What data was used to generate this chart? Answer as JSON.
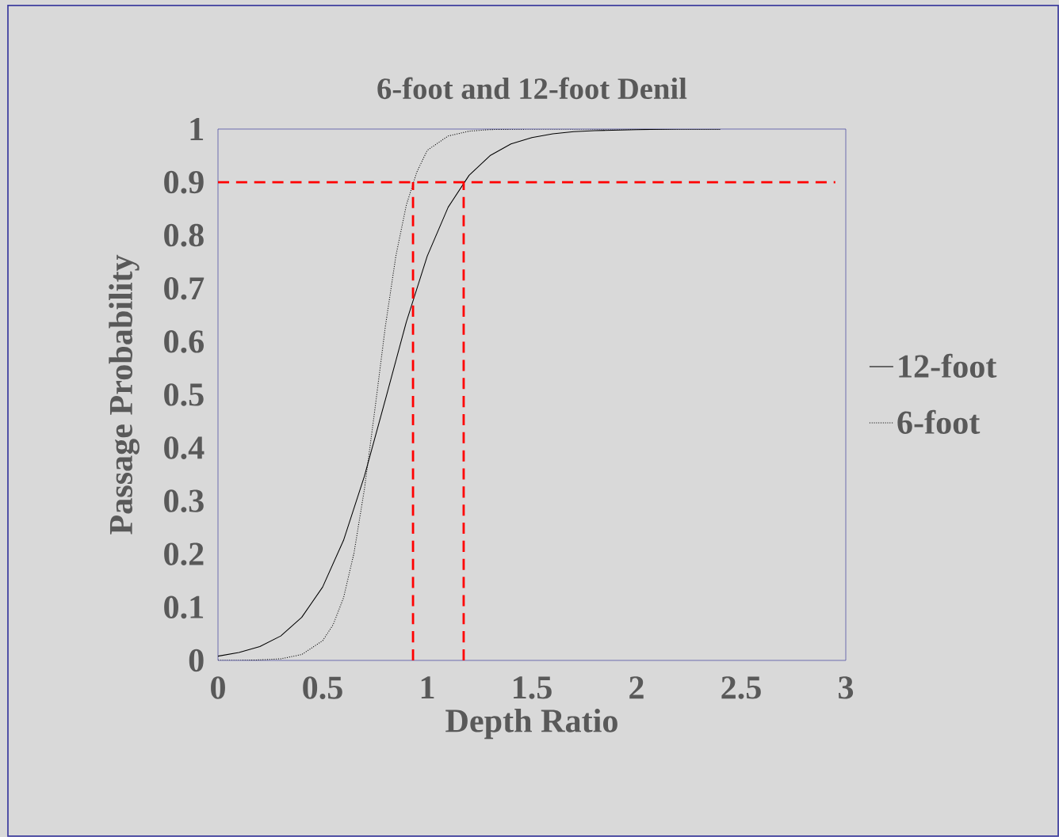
{
  "chart_data": {
    "type": "line",
    "title": "6-foot and 12-foot Denil",
    "xlabel": "Depth Ratio",
    "ylabel": "Passage Probability",
    "xlim": [
      0,
      3
    ],
    "xticks": [
      0,
      0.5,
      1,
      1.5,
      2,
      2.5,
      3
    ],
    "ylim": [
      0,
      1
    ],
    "yticks": [
      0,
      0.1,
      0.2,
      0.3,
      0.4,
      0.5,
      0.6,
      0.7,
      0.8,
      0.9,
      1
    ],
    "grid": false,
    "legend": "right",
    "marker": "none",
    "series": [
      {
        "name": "12-foot",
        "color": "#000000",
        "line_style": "solid",
        "x": [
          0,
          0.1,
          0.2,
          0.3,
          0.4,
          0.5,
          0.6,
          0.7,
          0.8,
          0.9,
          1.0,
          1.1,
          1.2,
          1.3,
          1.4,
          1.5,
          1.6,
          1.7,
          1.8,
          2.0,
          2.2,
          2.4
        ],
        "values": [
          0.008,
          0.015,
          0.026,
          0.046,
          0.081,
          0.138,
          0.226,
          0.347,
          0.491,
          0.637,
          0.761,
          0.853,
          0.913,
          0.95,
          0.972,
          0.984,
          0.991,
          0.995,
          0.997,
          0.999,
          1.0,
          1.0
        ]
      },
      {
        "name": "6-foot",
        "color": "#000000",
        "line_style": "dotted",
        "x": [
          0,
          0.1,
          0.2,
          0.3,
          0.4,
          0.5,
          0.55,
          0.6,
          0.65,
          0.7,
          0.75,
          0.8,
          0.85,
          0.9,
          0.95,
          1.0,
          1.1,
          1.2,
          1.3,
          1.5,
          2.0,
          2.4
        ],
        "values": [
          0.0,
          0.0,
          0.001,
          0.003,
          0.011,
          0.037,
          0.067,
          0.118,
          0.202,
          0.323,
          0.473,
          0.629,
          0.761,
          0.857,
          0.919,
          0.96,
          0.987,
          0.996,
          0.999,
          1.0,
          1.0,
          1.0
        ]
      },
      {
        "color": "#ff0000",
        "line_style": "dashed",
        "x": [
          0,
          2.95
        ],
        "values": [
          0.9,
          0.9
        ]
      },
      {
        "color": "#ff0000",
        "line_style": "dashed",
        "x": [
          0.932,
          0.932
        ],
        "values": [
          0,
          0.9
        ]
      },
      {
        "color": "#ff0000",
        "line_style": "dashed",
        "x": [
          1.174,
          1.174
        ],
        "values": [
          0,
          0.9
        ]
      }
    ]
  }
}
